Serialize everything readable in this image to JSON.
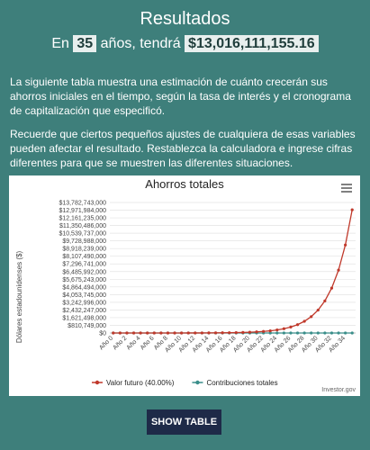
{
  "header": {
    "title": "Resultados",
    "prefix": "En",
    "years": "35",
    "middle": "años, tendrá",
    "amount": "$13,016,111,155.16"
  },
  "paragraphs": [
    "La siguiente tabla muestra una estimación de cuánto crecerán sus ahorros iniciales en el tiempo, según la tasa de interés y el cronograma de capitalización que especificó.",
    "Recuerde que ciertos pequeños ajustes de cualquiera de esas variables pueden afectar el resultado. Restablezca la calculadora e ingrese cifras diferentes para que se muestren las diferentes situaciones."
  ],
  "chart_data": {
    "type": "line",
    "title": "Ahorros totales",
    "y_label": "Dólares estadounidenses ($)",
    "credit": "Investor.gov",
    "categories": [
      "Año 0",
      null,
      "Año 2",
      null,
      "Año 4",
      null,
      "Año 6",
      null,
      "Año 8",
      null,
      "Año 10",
      null,
      "Año 12",
      null,
      "Año 14",
      null,
      "Año 16",
      null,
      "Año 18",
      null,
      "Año 20",
      null,
      "Año 22",
      null,
      "Año 24",
      null,
      "Año 26",
      null,
      "Año 28",
      null,
      "Año 30",
      null,
      "Año 32",
      null,
      "Año 34",
      null
    ],
    "series": [
      {
        "name": "Valor futuro (40.00%)",
        "color": "#c0392b",
        "values": [
          100000,
          140000,
          196000,
          274400,
          384160,
          537824,
          752954,
          1054135,
          1475789,
          2066105,
          2892547,
          4049565,
          5669391,
          7937148,
          11112007,
          15556810,
          21779534,
          30491347,
          42687886,
          59763041,
          83668257,
          117135560,
          163989784,
          229585698,
          321419977,
          449987968,
          629983155,
          881976417,
          1234766984,
          1728673778,
          2420143289,
          3388200605,
          4743480847,
          6640873186,
          9297222461,
          13016111155
        ]
      },
      {
        "name": "Contribuciones totales",
        "color": "#3a8e8a",
        "values": [
          100000,
          100000,
          100000,
          100000,
          100000,
          100000,
          100000,
          100000,
          100000,
          100000,
          100000,
          100000,
          100000,
          100000,
          100000,
          100000,
          100000,
          100000,
          100000,
          100000,
          100000,
          100000,
          100000,
          100000,
          100000,
          100000,
          100000,
          100000,
          100000,
          100000,
          100000,
          100000,
          100000,
          100000,
          100000,
          100000
        ]
      }
    ],
    "ylim": [
      0,
      13782743000
    ],
    "yticks": [
      {
        "value": 0,
        "label": "$0"
      },
      {
        "value": 810749000,
        "label": "$810,749,000"
      },
      {
        "value": 1621498000,
        "label": "$1,621,498,000"
      },
      {
        "value": 2432247000,
        "label": "$2,432,247,000"
      },
      {
        "value": 3242996000,
        "label": "$3,242,996,000"
      },
      {
        "value": 4053745000,
        "label": "$4,053,745,000"
      },
      {
        "value": 4864494000,
        "label": "$4,864,494,000"
      },
      {
        "value": 5675243000,
        "label": "$5,675,243,000"
      },
      {
        "value": 6485992000,
        "label": "$6,485,992,000"
      },
      {
        "value": 7296741000,
        "label": "$7,296,741,000"
      },
      {
        "value": 8107490000,
        "label": "$8,107,490,000"
      },
      {
        "value": 8918239000,
        "label": "$8,918,239,000"
      },
      {
        "value": 9728988000,
        "label": "$9,728,988,000"
      },
      {
        "value": 10539737000,
        "label": "$10,539,737,000"
      },
      {
        "value": 11350486000,
        "label": "$11,350,486,000"
      },
      {
        "value": 12161235000,
        "label": "$12,161,235,000"
      },
      {
        "value": 12971984000,
        "label": "$12,971,984,000"
      },
      {
        "value": 13782743000,
        "label": "$13,782,743,000"
      }
    ],
    "grid": true,
    "legend": "bottom"
  },
  "button": {
    "label": "SHOW TABLE"
  }
}
